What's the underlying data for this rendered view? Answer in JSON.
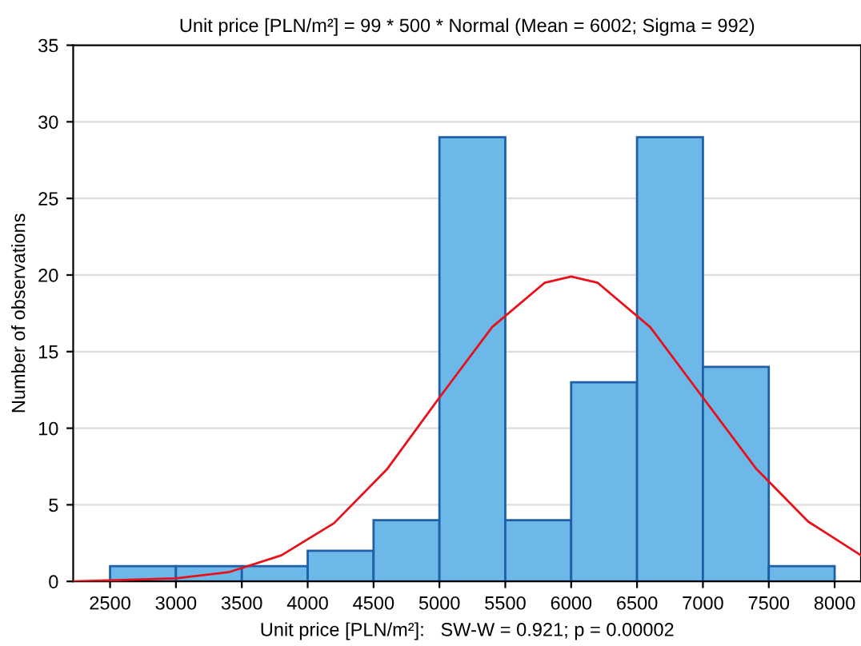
{
  "chart_data": {
    "type": "histogram",
    "title": "Unit price [PLN/m²] = 99 * 500 * Normal (Mean = 6002; Sigma = 992)",
    "xlabel": "Unit price [PLN/m²]:   SW-W = 0.921; p = 0.00002",
    "ylabel": "Number of observations",
    "bins": [
      2500,
      3000,
      3500,
      4000,
      4500,
      5000,
      5500,
      6000,
      6500,
      7000,
      7500,
      8000
    ],
    "values": [
      1,
      1,
      1,
      2,
      4,
      29,
      4,
      13,
      29,
      14,
      1
    ],
    "color": "#6cb8e8",
    "series": [
      {
        "type": "line",
        "color": "#e8101a",
        "x": [
          2220,
          2600,
          3000,
          3400,
          3800,
          4200,
          4600,
          5000,
          5400,
          5800,
          6000,
          6200,
          6600,
          7000,
          7400,
          7800,
          8200
        ],
        "values": [
          0.0,
          0.1,
          0.2,
          0.6,
          1.7,
          3.8,
          7.3,
          12.0,
          16.6,
          19.5,
          19.9,
          19.5,
          16.6,
          12.0,
          7.4,
          3.9,
          1.7
        ]
      }
    ],
    "xlim": [
      2220,
      8200
    ],
    "xticks": [
      2500,
      3000,
      3500,
      4000,
      4500,
      5000,
      5500,
      6000,
      6500,
      7000,
      7500,
      8000
    ],
    "ylim": [
      0,
      35
    ],
    "yticks": [
      0,
      5,
      10,
      15,
      20,
      25,
      30,
      35
    ],
    "grid": "y"
  }
}
